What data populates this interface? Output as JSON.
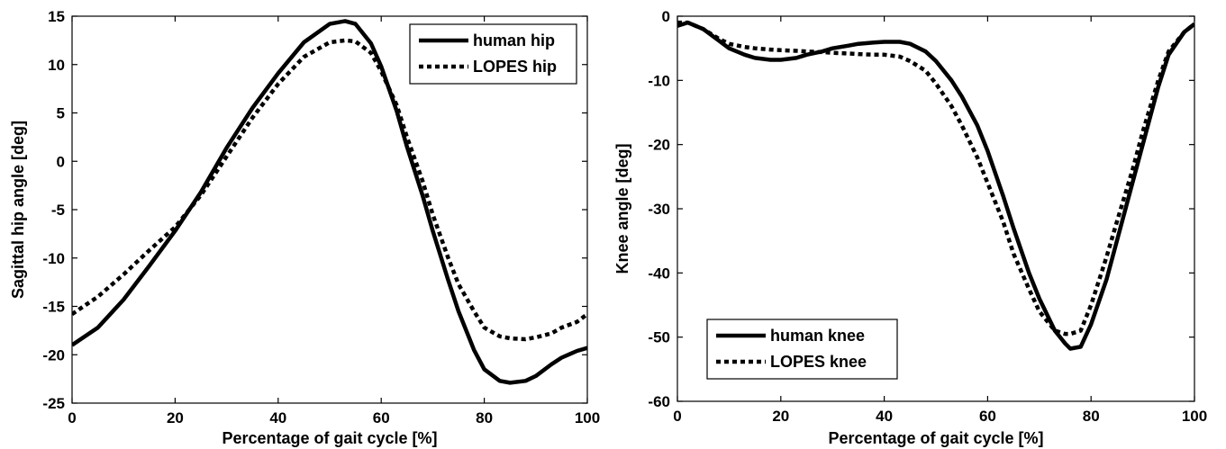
{
  "chart_data": [
    {
      "type": "line",
      "xlabel": "Percentage of gait cycle [%]",
      "ylabel": "Sagittal hip angle [deg]",
      "xlim": [
        0,
        100
      ],
      "ylim": [
        -25,
        15
      ],
      "xticks": [
        0,
        20,
        40,
        60,
        80,
        100
      ],
      "yticks": [
        -25,
        -20,
        -15,
        -10,
        -5,
        0,
        5,
        10,
        15
      ],
      "grid": false,
      "legend_position": "top-right",
      "series": [
        {
          "name": "human hip",
          "style": "solid",
          "x": [
            0,
            5,
            10,
            15,
            20,
            25,
            30,
            35,
            40,
            45,
            50,
            53,
            55,
            58,
            60,
            63,
            65,
            68,
            70,
            73,
            75,
            78,
            80,
            83,
            85,
            88,
            90,
            93,
            95,
            98,
            100
          ],
          "y": [
            -19,
            -17.2,
            -14.3,
            -10.8,
            -7.2,
            -3.2,
            1.4,
            5.5,
            9.1,
            12.3,
            14.2,
            14.5,
            14.2,
            12.2,
            9.8,
            5.2,
            1.5,
            -3.5,
            -7.2,
            -12.3,
            -15.5,
            -19.5,
            -21.5,
            -22.7,
            -22.9,
            -22.7,
            -22.2,
            -21,
            -20.3,
            -19.6,
            -19.3
          ]
        },
        {
          "name": "LOPES hip",
          "style": "dotted",
          "x": [
            0,
            5,
            10,
            15,
            20,
            25,
            30,
            35,
            40,
            45,
            50,
            53,
            55,
            58,
            60,
            63,
            65,
            68,
            70,
            73,
            75,
            78,
            80,
            83,
            85,
            88,
            90,
            93,
            95,
            98,
            100
          ],
          "y": [
            -15.8,
            -14,
            -11.7,
            -9.2,
            -6.8,
            -3.5,
            0.5,
            4.5,
            8,
            10.8,
            12.3,
            12.5,
            12.4,
            11.2,
            9.3,
            5.8,
            2.5,
            -2,
            -5.5,
            -10,
            -12.7,
            -15.5,
            -17.2,
            -18.1,
            -18.3,
            -18.4,
            -18.2,
            -17.8,
            -17.2,
            -16.6,
            -15.8
          ]
        }
      ]
    },
    {
      "type": "line",
      "xlabel": "Percentage of gait cycle [%]",
      "ylabel": "Knee angle [deg]",
      "xlim": [
        0,
        100
      ],
      "ylim": [
        -60,
        0
      ],
      "xticks": [
        0,
        20,
        40,
        60,
        80,
        100
      ],
      "yticks": [
        -60,
        -50,
        -40,
        -30,
        -20,
        -10,
        0
      ],
      "grid": false,
      "legend_position": "bottom-left",
      "series": [
        {
          "name": "human knee",
          "style": "solid",
          "x": [
            0,
            2,
            5,
            8,
            10,
            13,
            15,
            18,
            20,
            23,
            25,
            28,
            30,
            33,
            35,
            38,
            40,
            43,
            45,
            48,
            50,
            53,
            55,
            58,
            60,
            63,
            65,
            68,
            70,
            73,
            75,
            76,
            78,
            80,
            83,
            85,
            88,
            90,
            93,
            95,
            98,
            100
          ],
          "y": [
            -1.5,
            -1,
            -2,
            -3.8,
            -5,
            -6,
            -6.5,
            -6.8,
            -6.8,
            -6.5,
            -6,
            -5.5,
            -5,
            -4.6,
            -4.3,
            -4.1,
            -4,
            -4,
            -4.3,
            -5.5,
            -7,
            -10,
            -12.5,
            -17,
            -21,
            -28,
            -33,
            -40,
            -44,
            -49,
            -51,
            -51.8,
            -51.5,
            -48,
            -41,
            -35,
            -26,
            -20,
            -11,
            -6,
            -2.5,
            -1.2
          ]
        },
        {
          "name": "LOPES knee",
          "style": "dotted",
          "x": [
            0,
            2,
            5,
            8,
            10,
            13,
            15,
            18,
            20,
            23,
            25,
            28,
            30,
            33,
            35,
            38,
            40,
            43,
            45,
            48,
            50,
            53,
            55,
            58,
            60,
            63,
            65,
            68,
            70,
            73,
            75,
            76,
            78,
            80,
            83,
            85,
            88,
            90,
            93,
            95,
            98,
            100
          ],
          "y": [
            -1,
            -1,
            -2,
            -3.5,
            -4.3,
            -4.8,
            -5,
            -5.2,
            -5.3,
            -5.4,
            -5.5,
            -5.6,
            -5.7,
            -5.8,
            -5.9,
            -6,
            -6,
            -6.3,
            -7,
            -8.5,
            -10.5,
            -14,
            -17,
            -22,
            -26,
            -32,
            -37,
            -42.5,
            -46,
            -49,
            -49.5,
            -49.5,
            -49,
            -45,
            -37.5,
            -32,
            -24,
            -18,
            -10,
            -5.5,
            -2.5,
            -1.2
          ]
        }
      ]
    }
  ]
}
